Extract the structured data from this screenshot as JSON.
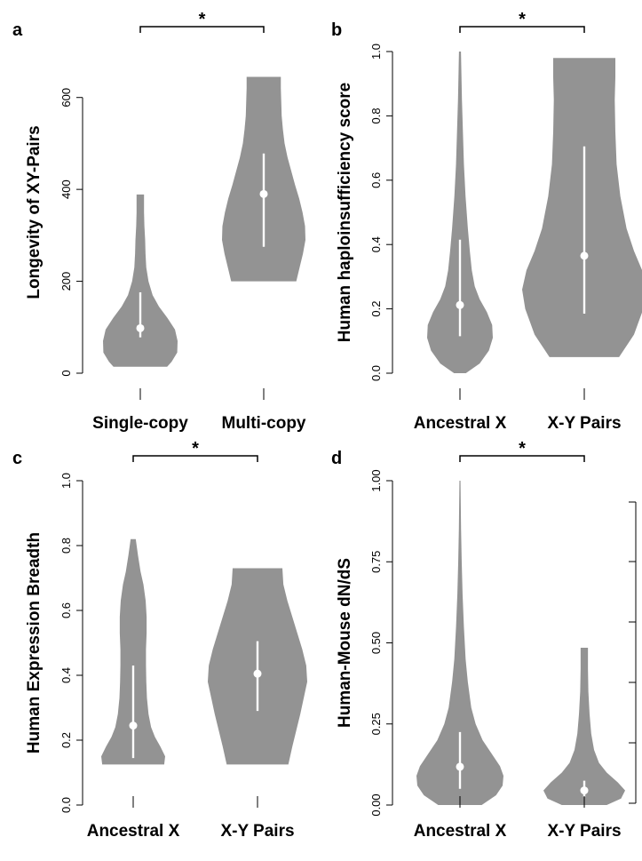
{
  "colors": {
    "violin": "#939393",
    "summary": "#ffffff",
    "axis": "#000000"
  },
  "chart_data": [
    {
      "panel": "a",
      "type": "violin",
      "title": "",
      "xlabel": "",
      "ylabel": "Longevity of XY-Pairs",
      "ylim": [
        0,
        700
      ],
      "yticks": [
        0,
        200,
        400,
        600
      ],
      "ytick_labels": [
        "0",
        "200",
        "400",
        "600"
      ],
      "categories": [
        "Single-copy",
        "Multi-copy"
      ],
      "groups": [
        {
          "label": "Single-copy",
          "min": 14,
          "max": 389,
          "q1": 78,
          "median": 98,
          "q3": 176,
          "profile": [
            [
              14,
              0.72
            ],
            [
              25,
              0.84
            ],
            [
              45,
              0.99
            ],
            [
              70,
              1.0
            ],
            [
              95,
              0.93
            ],
            [
              120,
              0.73
            ],
            [
              145,
              0.5
            ],
            [
              170,
              0.33
            ],
            [
              200,
              0.22
            ],
            [
              230,
              0.16
            ],
            [
              260,
              0.14
            ],
            [
              290,
              0.13
            ],
            [
              320,
              0.11
            ],
            [
              350,
              0.1
            ],
            [
              375,
              0.1
            ],
            [
              389,
              0.1
            ]
          ]
        },
        {
          "label": "Multi-copy",
          "min": 200,
          "max": 645,
          "q1": 275,
          "median": 390,
          "q3": 478,
          "profile": [
            [
              200,
              0.78
            ],
            [
              230,
              0.86
            ],
            [
              260,
              0.94
            ],
            [
              290,
              1.0
            ],
            [
              320,
              0.99
            ],
            [
              350,
              0.93
            ],
            [
              380,
              0.85
            ],
            [
              410,
              0.75
            ],
            [
              440,
              0.66
            ],
            [
              470,
              0.57
            ],
            [
              500,
              0.5
            ],
            [
              530,
              0.46
            ],
            [
              560,
              0.43
            ],
            [
              590,
              0.42
            ],
            [
              620,
              0.41
            ],
            [
              645,
              0.41
            ]
          ]
        }
      ],
      "significance": {
        "label": "*",
        "between": [
          "Single-copy",
          "Multi-copy"
        ]
      }
    },
    {
      "panel": "b",
      "type": "violin",
      "title": "",
      "xlabel": "",
      "ylabel": "Human haploinsufficiency score",
      "ylim": [
        0,
        1
      ],
      "yticks": [
        0.0,
        0.2,
        0.4,
        0.6,
        0.8,
        1.0
      ],
      "ytick_labels": [
        "0.0",
        "0.2",
        "0.4",
        "0.6",
        "0.8",
        "1.0"
      ],
      "categories": [
        "Ancestral X",
        "X-Y Pairs"
      ],
      "groups": [
        {
          "label": "Ancestral X",
          "min": 0.0,
          "max": 1.0,
          "q1": 0.115,
          "median": 0.212,
          "q3": 0.415,
          "profile": [
            [
              0.0,
              0.18
            ],
            [
              0.03,
              0.6
            ],
            [
              0.07,
              0.88
            ],
            [
              0.11,
              1.0
            ],
            [
              0.15,
              0.98
            ],
            [
              0.19,
              0.82
            ],
            [
              0.23,
              0.6
            ],
            [
              0.27,
              0.45
            ],
            [
              0.32,
              0.36
            ],
            [
              0.38,
              0.3
            ],
            [
              0.45,
              0.24
            ],
            [
              0.55,
              0.17
            ],
            [
              0.65,
              0.12
            ],
            [
              0.75,
              0.09
            ],
            [
              0.85,
              0.06
            ],
            [
              0.95,
              0.04
            ],
            [
              1.0,
              0.03
            ]
          ]
        },
        {
          "label": "X-Y Pairs",
          "min": 0.05,
          "max": 0.98,
          "q1": 0.185,
          "median": 0.365,
          "q3": 0.705,
          "profile": [
            [
              0.05,
              0.56
            ],
            [
              0.12,
              0.8
            ],
            [
              0.2,
              0.95
            ],
            [
              0.26,
              1.0
            ],
            [
              0.32,
              0.93
            ],
            [
              0.38,
              0.8
            ],
            [
              0.45,
              0.68
            ],
            [
              0.55,
              0.58
            ],
            [
              0.65,
              0.52
            ],
            [
              0.75,
              0.5
            ],
            [
              0.85,
              0.49
            ],
            [
              0.92,
              0.5
            ],
            [
              0.98,
              0.5
            ]
          ]
        }
      ],
      "significance": {
        "label": "*",
        "between": [
          "Ancestral X",
          "X-Y Pairs"
        ]
      }
    },
    {
      "panel": "c",
      "type": "violin",
      "title": "",
      "xlabel": "",
      "ylabel": "Human Expression Breadth",
      "ylim": [
        0,
        1
      ],
      "yticks": [
        0.0,
        0.2,
        0.4,
        0.6,
        0.8,
        1.0
      ],
      "ytick_labels": [
        "0.0",
        "0.2",
        "0.4",
        "0.6",
        "0.8",
        "1.0"
      ],
      "categories": [
        "Ancestral X",
        "X-Y Pairs"
      ],
      "groups": [
        {
          "label": "Ancestral X",
          "min": 0.125,
          "max": 0.82,
          "q1": 0.145,
          "median": 0.245,
          "q3": 0.43,
          "profile": [
            [
              0.125,
              0.97
            ],
            [
              0.15,
              1.0
            ],
            [
              0.18,
              0.85
            ],
            [
              0.21,
              0.68
            ],
            [
              0.24,
              0.56
            ],
            [
              0.28,
              0.48
            ],
            [
              0.33,
              0.43
            ],
            [
              0.38,
              0.41
            ],
            [
              0.43,
              0.4
            ],
            [
              0.48,
              0.4
            ],
            [
              0.53,
              0.42
            ],
            [
              0.58,
              0.42
            ],
            [
              0.63,
              0.39
            ],
            [
              0.68,
              0.32
            ],
            [
              0.72,
              0.23
            ],
            [
              0.77,
              0.15
            ],
            [
              0.82,
              0.08
            ]
          ]
        },
        {
          "label": "X-Y Pairs",
          "min": 0.125,
          "max": 0.73,
          "q1": 0.29,
          "median": 0.405,
          "q3": 0.505,
          "profile": [
            [
              0.125,
              0.62
            ],
            [
              0.18,
              0.7
            ],
            [
              0.23,
              0.78
            ],
            [
              0.28,
              0.86
            ],
            [
              0.33,
              0.93
            ],
            [
              0.38,
              1.0
            ],
            [
              0.43,
              0.98
            ],
            [
              0.48,
              0.9
            ],
            [
              0.53,
              0.8
            ],
            [
              0.58,
              0.7
            ],
            [
              0.63,
              0.6
            ],
            [
              0.68,
              0.52
            ],
            [
              0.73,
              0.5
            ]
          ]
        }
      ],
      "significance": {
        "label": "*",
        "between": [
          "Ancestral X",
          "X-Y Pairs"
        ]
      }
    },
    {
      "panel": "d",
      "type": "violin",
      "title": "",
      "xlabel": "",
      "ylabel": "Human-Mouse dN/dS",
      "ylim": [
        0,
        1
      ],
      "yticks": [
        0.0,
        0.25,
        0.5,
        0.75,
        1.0
      ],
      "ytick_labels": [
        "0.00",
        "0.25",
        "0.50",
        "0.75",
        "1.00"
      ],
      "categories": [
        "Ancestral X",
        "X-Y Pairs"
      ],
      "groups": [
        {
          "label": "Ancestral X",
          "min": 0.0,
          "max": 1.0,
          "q1": 0.05,
          "median": 0.118,
          "q3": 0.225,
          "profile": [
            [
              0.0,
              0.5
            ],
            [
              0.03,
              0.83
            ],
            [
              0.06,
              0.98
            ],
            [
              0.09,
              1.0
            ],
            [
              0.12,
              0.92
            ],
            [
              0.16,
              0.72
            ],
            [
              0.2,
              0.52
            ],
            [
              0.25,
              0.36
            ],
            [
              0.3,
              0.26
            ],
            [
              0.38,
              0.18
            ],
            [
              0.45,
              0.13
            ],
            [
              0.55,
              0.09
            ],
            [
              0.65,
              0.06
            ],
            [
              0.75,
              0.04
            ],
            [
              0.85,
              0.025
            ],
            [
              1.0,
              0.012
            ]
          ]
        },
        {
          "label": "X-Y Pairs",
          "min": 0.0,
          "max": 0.485,
          "q1": 0.025,
          "median": 0.045,
          "q3": 0.075,
          "profile": [
            [
              0.0,
              0.55
            ],
            [
              0.02,
              0.9
            ],
            [
              0.045,
              1.0
            ],
            [
              0.07,
              0.82
            ],
            [
              0.1,
              0.55
            ],
            [
              0.13,
              0.36
            ],
            [
              0.17,
              0.24
            ],
            [
              0.22,
              0.17
            ],
            [
              0.28,
              0.13
            ],
            [
              0.35,
              0.1
            ],
            [
              0.42,
              0.09
            ],
            [
              0.485,
              0.09
            ]
          ]
        }
      ],
      "significance": {
        "label": "*",
        "between": [
          "Ancestral X",
          "X-Y Pairs"
        ]
      }
    }
  ]
}
